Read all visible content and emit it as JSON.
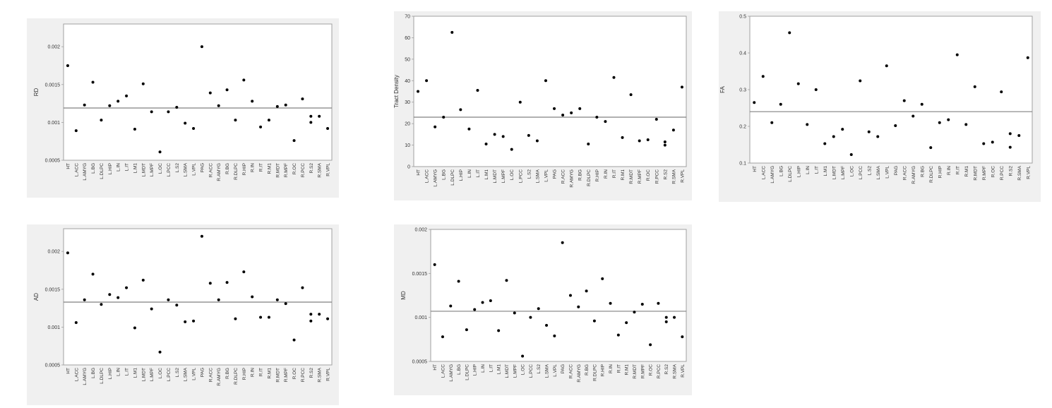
{
  "chart_data": [
    {
      "type": "scatter",
      "ylabel": "RD",
      "categories": [
        "HT",
        "L.ACC",
        "L.AMYG",
        "L.BG",
        "L.DLPC",
        "L.HIP",
        "L.IN",
        "L.IT",
        "L.M1",
        "L.MDT",
        "L.MPF",
        "L.OC",
        "L.PCC",
        "L.S2",
        "L.SMA",
        "L.VPL",
        "PAG",
        "R.ACC",
        "R.AMYG",
        "R.BG",
        "R.DLPC",
        "R.HIP",
        "R.IN",
        "R.IT",
        "R.M1",
        "R.MDT",
        "R.MPF",
        "R.OC",
        "R.PCC",
        "R.S2",
        "R.SMA",
        "R.VPL"
      ],
      "series": [
        {
          "values": [
            [
              0.00175
            ],
            [
              0.00089
            ],
            [
              0.00123
            ],
            [
              0.00153
            ],
            [
              0.00103
            ],
            [
              0.00122
            ],
            [
              0.00128
            ],
            [
              0.00135
            ],
            [
              0.00091
            ],
            [
              0.00151
            ],
            [
              0.00114
            ],
            [
              0.00061
            ],
            [
              0.00114
            ],
            [
              0.0012
            ],
            [
              0.00099
            ],
            [
              0.00092
            ],
            [
              0.002
            ],
            [
              0.00139
            ],
            [
              0.00122
            ],
            [
              0.00143
            ],
            [
              0.00103
            ],
            [
              0.00156
            ],
            [
              0.00128
            ],
            [
              0.00094
            ],
            [
              0.00103
            ],
            [
              0.00121
            ],
            [
              0.00123
            ],
            [
              0.00076
            ],
            [
              0.00131
            ],
            [
              0.00108,
              0.001
            ],
            [
              0.00108
            ],
            [
              0.00092
            ]
          ]
        }
      ],
      "reference_line": 0.00119,
      "ylim": [
        0.0005,
        0.0023
      ],
      "yticks": [
        "0.0005",
        "0.001",
        "0.0015",
        "0.002"
      ],
      "ytick_values": [
        0.0005,
        0.001,
        0.0015,
        0.002
      ],
      "grid": false
    },
    {
      "type": "scatter",
      "ylabel": "Tract Density",
      "categories": [
        "HT",
        "L.ACC",
        "L.AMYG",
        "L.BG",
        "L.DLPC",
        "L.HIP",
        "L.IN",
        "L.IT",
        "L.M1",
        "L.MDT",
        "L.MPF",
        "L.OC",
        "L.PCC",
        "L.S2",
        "L.SMA",
        "L.VPL",
        "PAG",
        "R.ACC",
        "R.AMYG",
        "R.BG",
        "R.DLPC",
        "R.HIP",
        "R.IN",
        "R.IT",
        "R.M1",
        "R.MDT",
        "R.MPF",
        "R.OC",
        "R.PCC",
        "R.S2",
        "R.SMA",
        "R.VPL"
      ],
      "series": [
        {
          "values": [
            [
              35
            ],
            [
              40
            ],
            [
              18.5
            ],
            [
              23
            ],
            [
              62.5
            ],
            [
              26.5
            ],
            [
              17.5
            ],
            [
              35.5
            ],
            [
              10.5
            ],
            [
              15
            ],
            [
              14
            ],
            [
              8
            ],
            [
              30
            ],
            [
              14.5
            ],
            [
              12
            ],
            [
              40
            ],
            [
              27
            ],
            [
              24
            ],
            [
              25
            ],
            [
              27
            ],
            [
              10.5
            ],
            [
              23
            ],
            [
              21
            ],
            [
              41.5
            ],
            [
              13.5
            ],
            [
              33.5
            ],
            [
              12
            ],
            [
              12.5
            ],
            [
              22
            ],
            [
              11.5,
              10
            ],
            [
              17
            ],
            [
              37
            ]
          ]
        }
      ],
      "reference_line": 23,
      "ylim": [
        0,
        70
      ],
      "yticks": [
        "0",
        "10",
        "20",
        "30",
        "40",
        "50",
        "60",
        "70"
      ],
      "ytick_values": [
        0,
        10,
        20,
        30,
        40,
        50,
        60,
        70
      ],
      "grid": false
    },
    {
      "type": "scatter",
      "ylabel": "FA",
      "categories": [
        "HT",
        "L.ACC",
        "L.AMYG",
        "L.BG",
        "L.DLPC",
        "L.HIP",
        "L.IN",
        "L.IT",
        "L.M1",
        "L.MDT",
        "L.MPF",
        "L.OC",
        "L.PCC",
        "L.S2",
        "L.SMA",
        "L.VPL",
        "PAG",
        "R.ACC",
        "R.AMYG",
        "R.BG",
        "R.DLPC",
        "R.HIP",
        "R.IN",
        "R.IT",
        "R.M1",
        "R.MDT",
        "R.MPF",
        "R.OC",
        "R.PCC",
        "R.S2",
        "R.SMA",
        "R.VPL"
      ],
      "series": [
        {
          "values": [
            [
              0.265
            ],
            [
              0.336
            ],
            [
              0.21
            ],
            [
              0.26
            ],
            [
              0.455
            ],
            [
              0.316
            ],
            [
              0.205
            ],
            [
              0.3
            ],
            [
              0.153
            ],
            [
              0.172
            ],
            [
              0.192
            ],
            [
              0.123
            ],
            [
              0.324
            ],
            [
              0.185
            ],
            [
              0.172
            ],
            [
              0.365
            ],
            [
              0.202
            ],
            [
              0.27
            ],
            [
              0.228
            ],
            [
              0.26
            ],
            [
              0.142
            ],
            [
              0.21
            ],
            [
              0.218
            ],
            [
              0.395
            ],
            [
              0.205
            ],
            [
              0.308
            ],
            [
              0.153
            ],
            [
              0.157
            ],
            [
              0.294
            ],
            [
              0.18,
              0.143
            ],
            [
              0.175
            ],
            [
              0.387
            ]
          ]
        }
      ],
      "reference_line": 0.24,
      "ylim": [
        0.1,
        0.5
      ],
      "yticks": [
        "0.1",
        "0.2",
        "0.3",
        "0.4",
        "0.5"
      ],
      "ytick_values": [
        0.1,
        0.2,
        0.3,
        0.4,
        0.5
      ],
      "grid": false
    },
    {
      "type": "scatter",
      "ylabel": "AD",
      "categories": [
        "HT",
        "L.ACC",
        "L.AMYG",
        "L.BG",
        "L.DLPC",
        "L.HIP",
        "L.IN",
        "L.IT",
        "L.M1",
        "L.MDT",
        "L.MPF",
        "L.OC",
        "L.PCC",
        "L.S2",
        "L.SMA",
        "L.VPL",
        "PAG",
        "R.ACC",
        "R.AMYG",
        "R.BG",
        "R.DLPC",
        "R.HIP",
        "R.IN",
        "R.IT",
        "R.M1",
        "R.MDT",
        "R.MPF",
        "R.OC",
        "R.PCC",
        "R.S2",
        "R.SMA",
        "R.VPL"
      ],
      "series": [
        {
          "values": [
            [
              0.00198
            ],
            [
              0.00106
            ],
            [
              0.00136
            ],
            [
              0.0017
            ],
            [
              0.0013
            ],
            [
              0.00143
            ],
            [
              0.00139
            ],
            [
              0.00152
            ],
            [
              0.00099
            ],
            [
              0.00162
            ],
            [
              0.00124
            ],
            [
              0.00067
            ],
            [
              0.00136
            ],
            [
              0.00129
            ],
            [
              0.00107
            ],
            [
              0.00108
            ],
            [
              0.0022
            ],
            [
              0.00158
            ],
            [
              0.00136
            ],
            [
              0.00159
            ],
            [
              0.00111
            ],
            [
              0.00173
            ],
            [
              0.0014
            ],
            [
              0.00113
            ],
            [
              0.00113
            ],
            [
              0.00136
            ],
            [
              0.00131
            ],
            [
              0.00083
            ],
            [
              0.00152
            ],
            [
              0.00117,
              0.00108
            ],
            [
              0.00117
            ],
            [
              0.00111
            ]
          ]
        }
      ],
      "reference_line": 0.00133,
      "ylim": [
        0.0005,
        0.0023
      ],
      "yticks": [
        "0.0005",
        "0.001",
        "0.0015",
        "0.002"
      ],
      "ytick_values": [
        0.0005,
        0.001,
        0.0015,
        0.002
      ],
      "grid": false
    },
    {
      "type": "scatter",
      "ylabel": "MD",
      "categories": [
        "HT",
        "L.ACC",
        "L.AMYG",
        "L.BG",
        "L.DLPC",
        "L.HIP",
        "L.IN",
        "L.IT",
        "L.M1",
        "L.MDT",
        "L.MPF",
        "L.OC",
        "L.PCC",
        "L.S2",
        "L.SMA",
        "L.VPL",
        "PAG",
        "R.ACC",
        "R.AMYG",
        "R.BG",
        "R.DLPC",
        "R.HIP",
        "R.IN",
        "R.IT",
        "R.M1",
        "R.MDT",
        "R.MPF",
        "R.OC",
        "R.PCC",
        "R.S2",
        "R.SMA",
        "R.VPL"
      ],
      "series": [
        {
          "values": [
            [
              0.0016
            ],
            [
              0.00078
            ],
            [
              0.00113
            ],
            [
              0.00141
            ],
            [
              0.00086
            ],
            [
              0.00109
            ],
            [
              0.00117
            ],
            [
              0.00119
            ],
            [
              0.00085
            ],
            [
              0.00142
            ],
            [
              0.00105
            ],
            [
              0.00056
            ],
            [
              0.001
            ],
            [
              0.0011
            ],
            [
              0.00091
            ],
            [
              0.00079
            ],
            [
              0.00185
            ],
            [
              0.00125
            ],
            [
              0.00112
            ],
            [
              0.0013
            ],
            [
              0.00096
            ],
            [
              0.00144
            ],
            [
              0.00116
            ],
            [
              0.0008
            ],
            [
              0.00094
            ],
            [
              0.00106
            ],
            [
              0.00115
            ],
            [
              0.00069
            ],
            [
              0.00116
            ],
            [
              0.001,
              0.00095
            ],
            [
              0.001
            ],
            [
              0.00078
            ]
          ]
        }
      ],
      "reference_line": 0.00107,
      "ylim": [
        0.0005,
        0.002
      ],
      "yticks": [
        "0.0005",
        "0.001",
        "0.0015",
        "0.002"
      ],
      "ytick_values": [
        0.0005,
        0.001,
        0.0015,
        0.002
      ],
      "grid": false
    }
  ]
}
